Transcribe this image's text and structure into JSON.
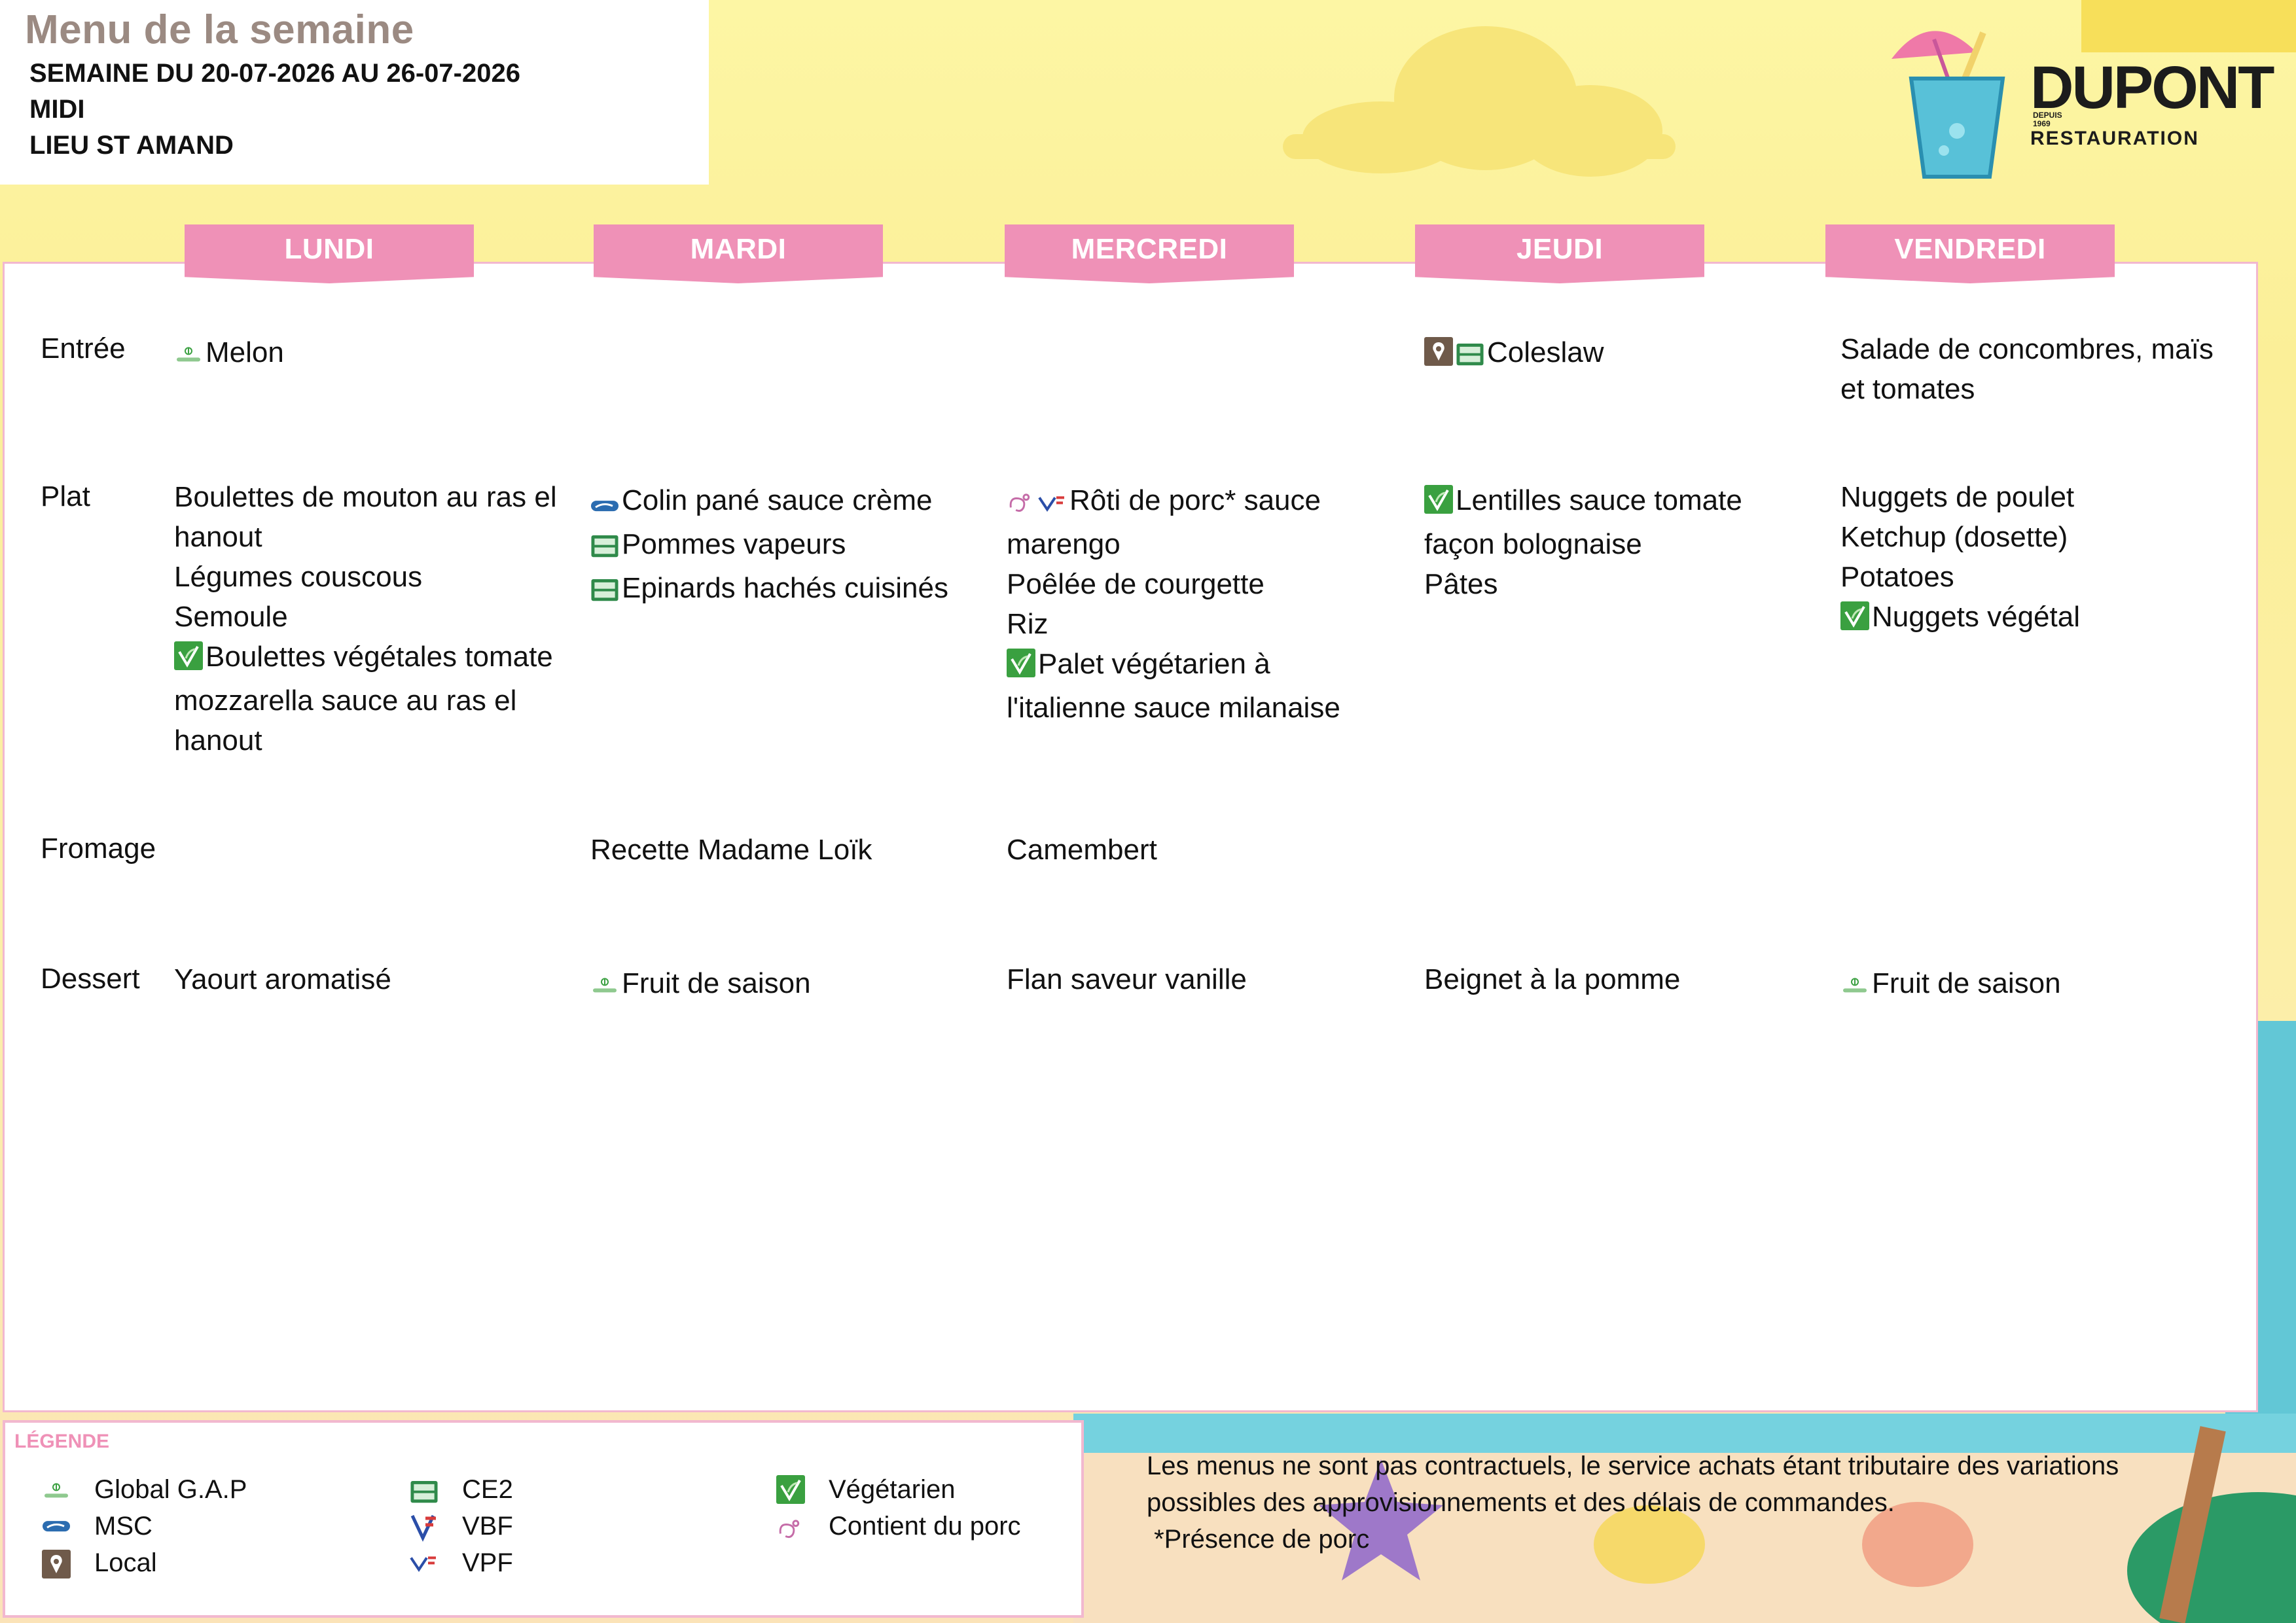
{
  "header": {
    "title": "Menu de la semaine",
    "week": "SEMAINE DU 20-07-2026 AU 26-07-2026",
    "service": "MIDI",
    "location": "LIEU ST AMAND"
  },
  "logo": {
    "brand_top": "DUPONT",
    "since": "DEPUIS 1969",
    "brand_bottom": "RESTAURATION"
  },
  "days": [
    "LUNDI",
    "MARDI",
    "MERCREDI",
    "JEUDI",
    "VENDREDI"
  ],
  "categories": [
    "Entrée",
    "Plat",
    "Fromage",
    "Dessert"
  ],
  "menu": {
    "entree": {
      "lundi": [
        {
          "icons": [
            "globalgap-icon"
          ],
          "text": "Melon"
        }
      ],
      "jeudi": [
        {
          "icons": [
            "local-icon",
            "ce2-icon"
          ],
          "text": "Coleslaw"
        }
      ],
      "vendredi": [
        {
          "icons": [],
          "text": "Salade de concombres, maïs"
        },
        {
          "icons": [],
          "text": "et tomates"
        }
      ]
    },
    "plat": {
      "lundi": [
        {
          "icons": [],
          "text": "Boulettes de mouton au ras el"
        },
        {
          "icons": [],
          "text": "hanout"
        },
        {
          "icons": [],
          "text": "Légumes couscous"
        },
        {
          "icons": [],
          "text": "Semoule"
        },
        {
          "icons": [
            "vegetarien-icon"
          ],
          "text": "Boulettes végétales tomate"
        },
        {
          "icons": [],
          "text": "mozzarella sauce au ras el"
        },
        {
          "icons": [],
          "text": "hanout"
        }
      ],
      "mardi": [
        {
          "icons": [
            "msc-icon"
          ],
          "text": "Colin pané sauce crème"
        },
        {
          "icons": [
            "ce2-icon"
          ],
          "text": "Pommes vapeurs"
        },
        {
          "icons": [
            "ce2-icon"
          ],
          "text": "Epinards hachés cuisinés"
        }
      ],
      "mercredi": [
        {
          "icons": [
            "porc-icon",
            "vpf-icon"
          ],
          "text": "Rôti de porc* sauce"
        },
        {
          "icons": [],
          "text": "marengo"
        },
        {
          "icons": [],
          "text": "Poêlée de courgette"
        },
        {
          "icons": [],
          "text": "Riz"
        },
        {
          "icons": [
            "vegetarien-icon"
          ],
          "text": "Palet végétarien à"
        },
        {
          "icons": [],
          "text": "l'italienne sauce milanaise"
        }
      ],
      "jeudi": [
        {
          "icons": [
            "vegetarien-icon"
          ],
          "text": "Lentilles sauce tomate"
        },
        {
          "icons": [],
          "text": "façon bolognaise"
        },
        {
          "icons": [],
          "text": "Pâtes"
        }
      ],
      "vendredi": [
        {
          "icons": [],
          "text": "Nuggets de poulet"
        },
        {
          "icons": [],
          "text": "Ketchup (dosette)"
        },
        {
          "icons": [],
          "text": "Potatoes"
        },
        {
          "icons": [
            "vegetarien-icon"
          ],
          "text": "Nuggets végétal"
        }
      ]
    },
    "fromage": {
      "mardi": [
        {
          "icons": [],
          "text": "Recette Madame Loïk"
        }
      ],
      "mercredi": [
        {
          "icons": [],
          "text": "Camembert"
        }
      ]
    },
    "dessert": {
      "lundi": [
        {
          "icons": [],
          "text": "Yaourt aromatisé"
        }
      ],
      "mardi": [
        {
          "icons": [
            "globalgap-icon"
          ],
          "text": "Fruit de saison"
        }
      ],
      "mercredi": [
        {
          "icons": [],
          "text": "Flan saveur vanille"
        }
      ],
      "jeudi": [
        {
          "icons": [],
          "text": "Beignet à la pomme"
        }
      ],
      "vendredi": [
        {
          "icons": [
            "globalgap-icon"
          ],
          "text": "Fruit de saison"
        }
      ]
    }
  },
  "legend": {
    "title": "LÉGENDE",
    "items": [
      {
        "icon": "globalgap-icon",
        "label": "Global G.A.P"
      },
      {
        "icon": "msc-icon",
        "label": "MSC"
      },
      {
        "icon": "local-icon",
        "label": "Local"
      },
      {
        "icon": "ce2-icon",
        "label": "CE2"
      },
      {
        "icon": "vbf-icon",
        "label": "VBF"
      },
      {
        "icon": "vpf-icon",
        "label": "VPF"
      },
      {
        "icon": "vegetarien-icon",
        "label": "Végétarien"
      },
      {
        "icon": "porc-icon",
        "label": "Contient du porc"
      }
    ]
  },
  "disclaimer": {
    "line1": "Les menus ne sont pas contractuels, le service achats étant tributaire des variations",
    "line2": "possibles des approvisionnements et des délais de commandes.",
    "line3": " *Présence de porc"
  },
  "colors": {
    "accent_pink": "#ef91b7",
    "border_pink": "#f2b8cf",
    "title_gray": "#9b8a82",
    "veg_green": "#3aa040",
    "msc_blue": "#2b6cb0",
    "local_brown": "#6f5a4a",
    "background_yellow": "#fdf6a4"
  }
}
